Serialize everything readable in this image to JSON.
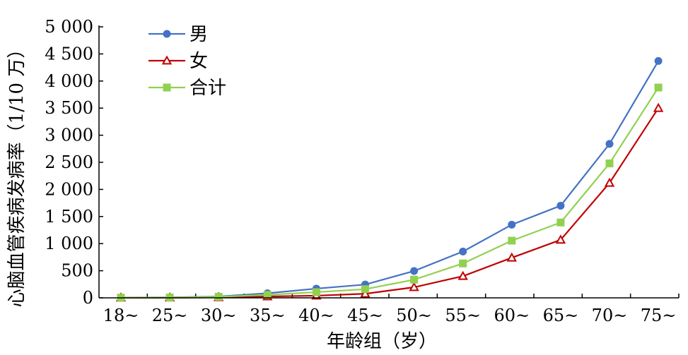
{
  "chart_data": {
    "type": "line",
    "title": "",
    "xlabel": "年龄组（岁）",
    "ylabel": "心脑血管疾病发病率（1/10 万）",
    "categories": [
      "18~",
      "25~",
      "30~",
      "35~",
      "40~",
      "45~",
      "50~",
      "55~",
      "60~",
      "65~",
      "70~",
      "75~"
    ],
    "yticks": [
      "0",
      "500",
      "1 000",
      "1 500",
      "2 000",
      "2 500",
      "3 000",
      "3 500",
      "4 000",
      "4 500",
      "5 000"
    ],
    "ylim": [
      0,
      5000
    ],
    "grid": false,
    "legend_position": "top-left",
    "series": [
      {
        "name": "男",
        "color": "#4472C4",
        "marker": "circle",
        "values": [
          5,
          8,
          25,
          85,
          170,
          245,
          495,
          855,
          1350,
          1700,
          2840,
          4370
        ]
      },
      {
        "name": "女",
        "color": "#C00000",
        "marker": "triangle",
        "values": [
          2,
          4,
          10,
          25,
          40,
          75,
          195,
          400,
          740,
          1070,
          2120,
          3500
        ]
      },
      {
        "name": "合计",
        "color": "#92D050",
        "marker": "square",
        "values": [
          3,
          6,
          20,
          55,
          105,
          160,
          335,
          635,
          1055,
          1390,
          2480,
          3880
        ]
      }
    ]
  }
}
